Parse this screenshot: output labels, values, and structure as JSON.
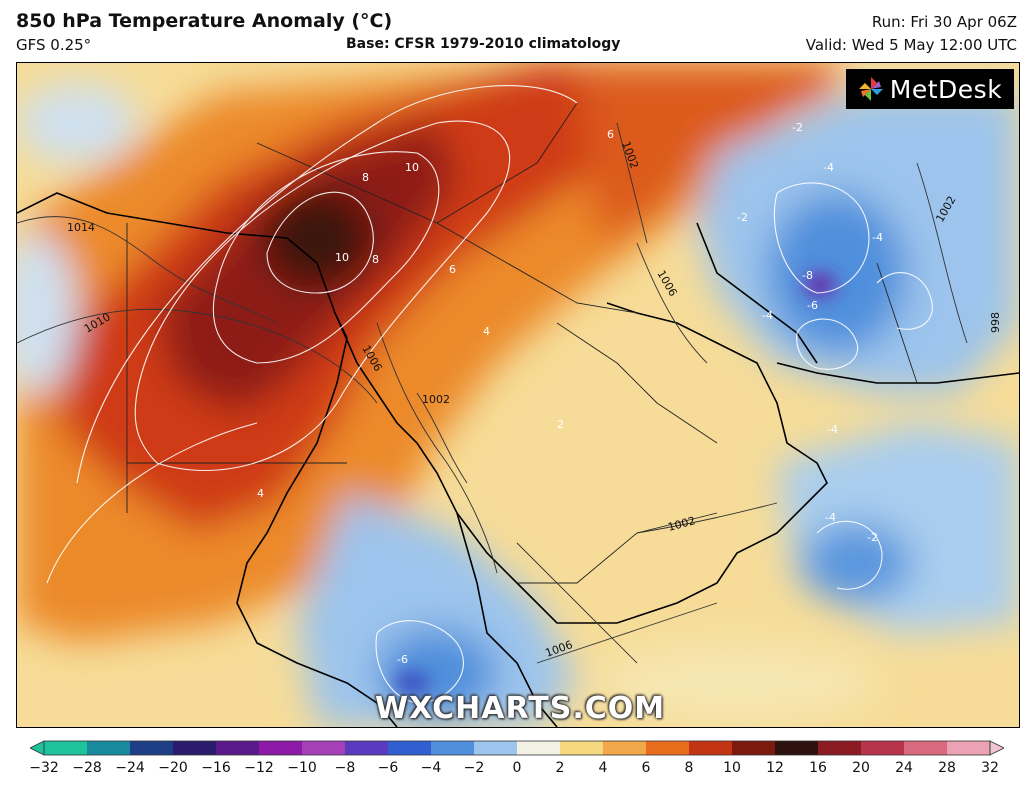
{
  "header": {
    "title": "850 hPa Temperature Anomaly (°C)",
    "subtitle": "GFS 0.25°",
    "base": "Base: CFSR 1979-2010 climatology",
    "run": "Run: Fri 30 Apr 06Z",
    "valid": "Valid: Wed 5 May 12:00 UTC"
  },
  "logos": {
    "metdesk": "MetDesk",
    "watermark": "WXCHARTS.COM"
  },
  "map": {
    "isobar_labels": [
      "1014",
      "1010",
      "1006",
      "1002",
      "1006",
      "1002",
      "1002",
      "1006",
      "1002",
      "998"
    ],
    "contour_labels": [
      "10",
      "10",
      "8",
      "8",
      "6",
      "6",
      "4",
      "4",
      "2",
      "-2",
      "-4",
      "-4",
      "-2",
      "-6",
      "-4",
      "-8",
      "-6",
      "-2",
      "-4",
      "-4"
    ]
  },
  "colorbar": {
    "ticks": [
      "−32",
      "−28",
      "−24",
      "−20",
      "−16",
      "−12",
      "−10",
      "−8",
      "−6",
      "−4",
      "−2",
      "0",
      "2",
      "4",
      "6",
      "8",
      "10",
      "12",
      "16",
      "20",
      "24",
      "28",
      "32"
    ],
    "colors": [
      "#1dc39a",
      "#1a8a9e",
      "#1e3f88",
      "#2a1b6e",
      "#5b1a8a",
      "#8d1aa8",
      "#a640b8",
      "#5a3bc0",
      "#2f5fd0",
      "#4f8fdc",
      "#9cc4ec",
      "#f3f1e4",
      "#f6d87e",
      "#f1a84a",
      "#e86e1e",
      "#c33512",
      "#7d1a10",
      "#2e120f",
      "#8c1b22",
      "#b8344a",
      "#d86a80",
      "#eaa2b4"
    ]
  }
}
